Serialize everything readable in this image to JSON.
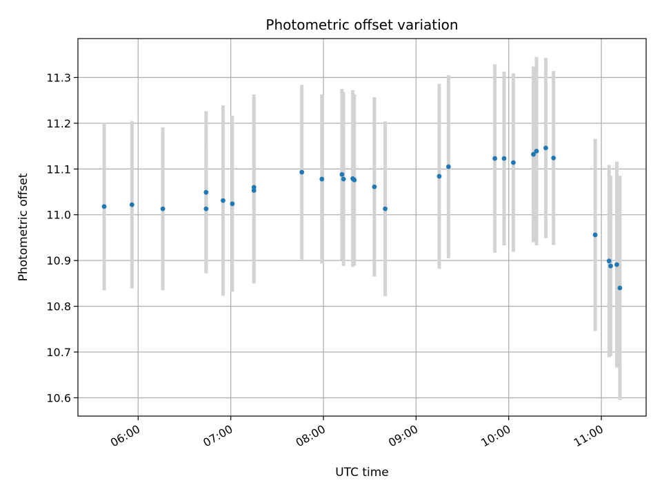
{
  "chart_data": {
    "type": "scatter",
    "title": "Photometric offset variation",
    "xlabel": "UTC time",
    "ylabel": "Photometric offset",
    "x_unit": "UTC time (HH:MM)",
    "xlim": [
      "05:21",
      "11:29"
    ],
    "ylim": [
      10.56,
      11.385
    ],
    "x_ticks": [
      "06:00",
      "07:00",
      "08:00",
      "09:00",
      "10:00",
      "11:00"
    ],
    "y_ticks": [
      10.6,
      10.7,
      10.8,
      10.9,
      11.0,
      11.1,
      11.2,
      11.3
    ],
    "y_tick_labels": [
      "10.6",
      "10.7",
      "10.8",
      "10.9",
      "11.0",
      "11.1",
      "11.2",
      "11.3"
    ],
    "grid": true,
    "legend": "none",
    "colors": {
      "points": "#1f77b4",
      "errorbars": "#d3d3d3",
      "grid": "#b0b0b0"
    },
    "points": [
      {
        "x": "05:38",
        "y": 11.018,
        "err": 0.183
      },
      {
        "x": "05:56",
        "y": 11.022,
        "err": 0.183
      },
      {
        "x": "06:16",
        "y": 11.013,
        "err": 0.178
      },
      {
        "x": "06:44",
        "y": 11.049,
        "err": 0.177
      },
      {
        "x": "06:44",
        "y": 11.013,
        "err": 0.137
      },
      {
        "x": "06:55",
        "y": 11.031,
        "err": 0.208
      },
      {
        "x": "07:01",
        "y": 11.024,
        "err": 0.192
      },
      {
        "x": "07:15",
        "y": 11.053,
        "err": 0.203
      },
      {
        "x": "07:15",
        "y": 11.06,
        "err": 0.203
      },
      {
        "x": "07:46",
        "y": 11.093,
        "err": 0.191
      },
      {
        "x": "07:59",
        "y": 11.078,
        "err": 0.185
      },
      {
        "x": "08:12",
        "y": 11.088,
        "err": 0.187
      },
      {
        "x": "08:13",
        "y": 11.078,
        "err": 0.19
      },
      {
        "x": "08:19",
        "y": 11.079,
        "err": 0.193
      },
      {
        "x": "08:20",
        "y": 11.076,
        "err": 0.187
      },
      {
        "x": "08:33",
        "y": 11.061,
        "err": 0.196
      },
      {
        "x": "08:40",
        "y": 11.013,
        "err": 0.191
      },
      {
        "x": "09:15",
        "y": 11.084,
        "err": 0.202
      },
      {
        "x": "09:21",
        "y": 11.105,
        "err": 0.2
      },
      {
        "x": "09:51",
        "y": 11.123,
        "err": 0.206
      },
      {
        "x": "09:57",
        "y": 11.123,
        "err": 0.19
      },
      {
        "x": "10:03",
        "y": 11.114,
        "err": 0.195
      },
      {
        "x": "10:16",
        "y": 11.132,
        "err": 0.192
      },
      {
        "x": "10:18",
        "y": 11.139,
        "err": 0.206
      },
      {
        "x": "10:24",
        "y": 11.146,
        "err": 0.197
      },
      {
        "x": "10:29",
        "y": 11.124,
        "err": 0.19
      },
      {
        "x": "10:56",
        "y": 10.956,
        "err": 0.21
      },
      {
        "x": "11:05",
        "y": 10.899,
        "err": 0.21
      },
      {
        "x": "11:06",
        "y": 10.888,
        "err": 0.197
      },
      {
        "x": "11:10",
        "y": 10.891,
        "err": 0.225
      },
      {
        "x": "11:12",
        "y": 10.84,
        "err": 0.245
      }
    ]
  }
}
